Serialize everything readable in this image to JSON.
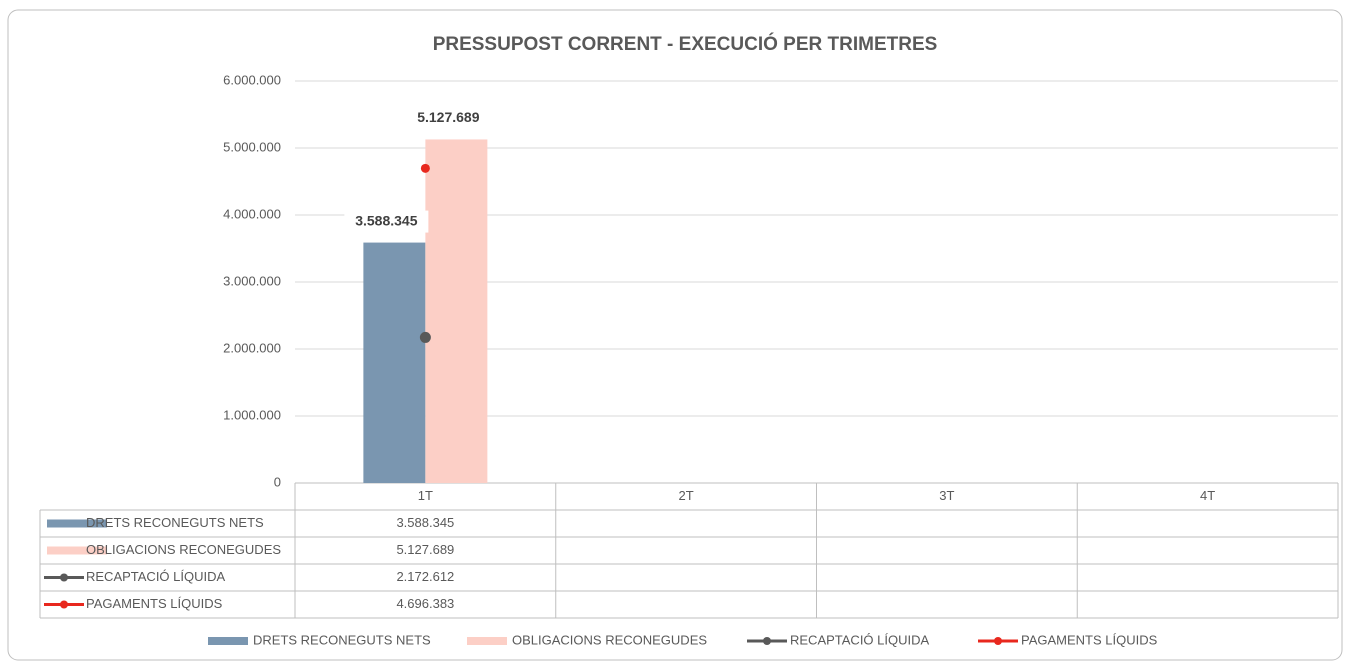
{
  "chart_data": {
    "type": "bar",
    "title": "PRESSUPOST CORRENT - EXECUCIÓ PER TRIMETRES",
    "categories": [
      "1T",
      "2T",
      "3T",
      "4T"
    ],
    "series": [
      {
        "name": "DRETS RECONEGUTS NETS",
        "type": "bar",
        "color": "#7a96b0",
        "values": [
          3588345,
          null,
          null,
          null
        ],
        "value_labels": [
          "3.588.345",
          null,
          null,
          null
        ]
      },
      {
        "name": "OBLIGACIONS RECONEGUDES",
        "type": "bar",
        "color": "#fccfc6",
        "values": [
          5127689,
          null,
          null,
          null
        ],
        "value_labels": [
          "5.127.689",
          null,
          null,
          null
        ]
      },
      {
        "name": "RECAPTACIÓ LÍQUIDA",
        "type": "line",
        "color": "#595959",
        "values": [
          2172612,
          null,
          null,
          null
        ],
        "value_labels": [
          "2.172.612",
          null,
          null,
          null
        ]
      },
      {
        "name": "PAGAMENTS LÍQUIDS",
        "type": "line",
        "color": "#e8281e",
        "values": [
          4696383,
          null,
          null,
          null
        ],
        "value_labels": [
          "4.696.383",
          null,
          null,
          null
        ]
      }
    ],
    "ylim": [
      0,
      6000000
    ],
    "yticks": [
      0,
      {
        "value": 1000000,
        "label": "1.000.000"
      },
      {
        "value": 2000000,
        "label": "2.000.000"
      },
      {
        "value": 3000000,
        "label": "3.000.000"
      },
      {
        "value": 4000000,
        "label": "4.000.000"
      },
      {
        "value": 5000000,
        "label": "5.000.000"
      },
      {
        "value": 6000000,
        "label": "6.000.000"
      }
    ],
    "grid": true
  }
}
